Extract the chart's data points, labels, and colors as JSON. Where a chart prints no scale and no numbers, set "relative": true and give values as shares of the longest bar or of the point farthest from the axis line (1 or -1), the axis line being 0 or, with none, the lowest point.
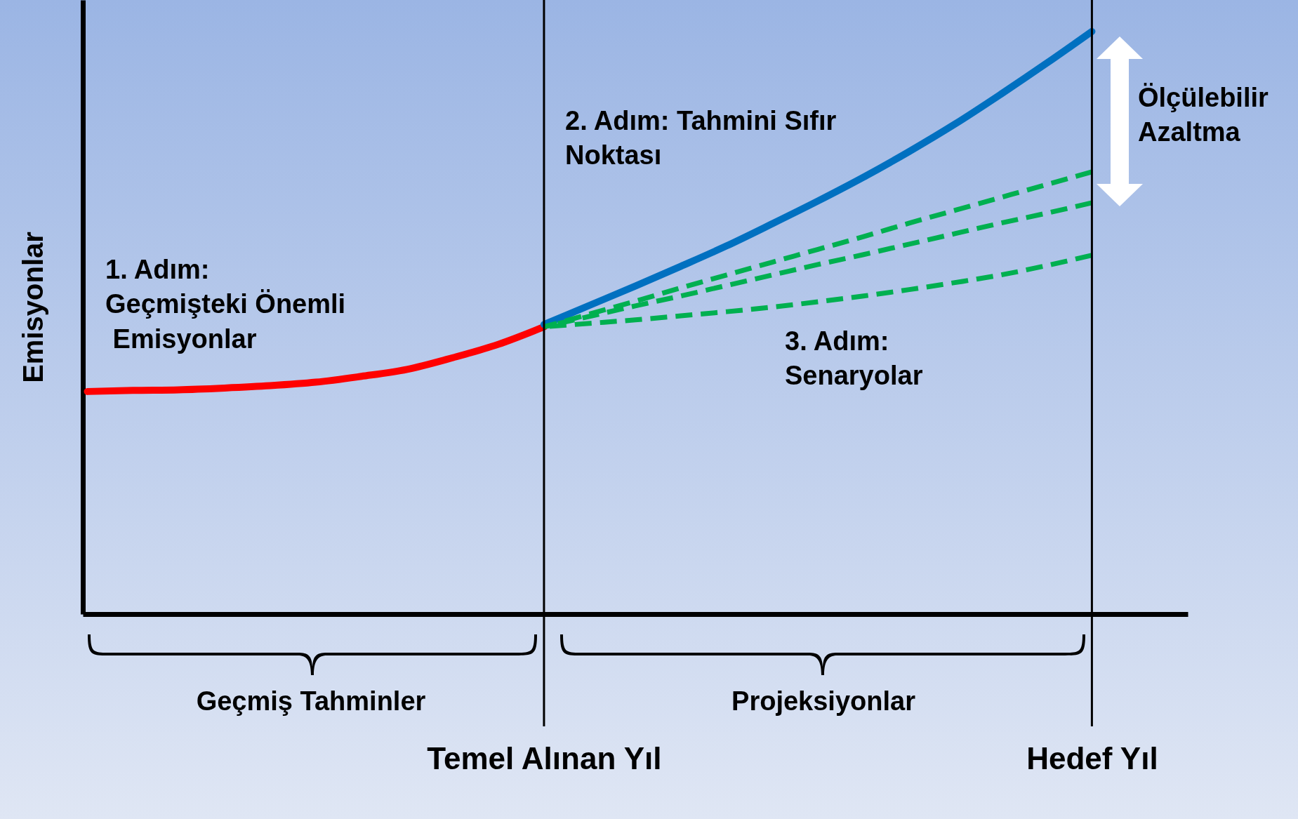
{
  "chart_data": {
    "type": "line",
    "ylabel": "Emisyonlar",
    "categories": [
      null,
      null,
      null,
      null,
      null,
      null,
      null,
      null,
      null,
      null,
      "Temel Alınan Yıl",
      null,
      null,
      null,
      null,
      null,
      null,
      null,
      null,
      null,
      null,
      null,
      "Hedef Yıl",
      null,
      null
    ],
    "series": [
      {
        "color": "#ff0000",
        "line_style": "solid",
        "values": [
          0.382,
          0.384,
          0.385,
          0.388,
          0.392,
          0.398,
          0.408,
          0.42,
          0.44,
          0.463,
          0.493,
          null,
          null,
          null,
          null,
          null,
          null,
          null,
          null,
          null,
          null,
          null,
          null,
          null,
          null
        ]
      },
      {
        "color": "#0070c0",
        "line_style": "solid",
        "values": [
          null,
          null,
          null,
          null,
          null,
          null,
          null,
          null,
          null,
          null,
          0.497,
          0.53,
          0.563,
          0.597,
          0.632,
          0.67,
          0.709,
          0.75,
          0.794,
          0.841,
          0.892,
          0.945,
          1,
          null,
          null
        ]
      },
      {
        "color": "#00b050",
        "line_style": "dashed",
        "values": [
          null,
          null,
          null,
          null,
          null,
          null,
          null,
          null,
          null,
          null,
          0.493,
          0.515,
          0.537,
          0.56,
          0.582,
          0.604,
          0.626,
          0.648,
          0.671,
          0.693,
          0.715,
          0.737,
          0.759,
          null,
          null
        ]
      },
      {
        "color": "#00b050",
        "line_style": "dashed",
        "values": [
          null,
          null,
          null,
          null,
          null,
          null,
          null,
          null,
          null,
          null,
          0.493,
          0.511,
          0.529,
          0.546,
          0.564,
          0.582,
          0.6,
          0.617,
          0.635,
          0.653,
          0.671,
          0.688,
          0.706,
          null,
          null
        ]
      },
      {
        "color": "#00b050",
        "line_style": "dashed",
        "values": [
          null,
          null,
          null,
          null,
          null,
          null,
          null,
          null,
          null,
          null,
          0.493,
          0.499,
          0.505,
          0.512,
          0.519,
          0.527,
          0.536,
          0.546,
          0.557,
          0.569,
          0.582,
          0.598,
          0.616,
          null,
          null
        ]
      }
    ],
    "ref_lines": [
      {
        "axis": "x",
        "value": "Temel Alınan Yıl"
      },
      {
        "axis": "x",
        "value": "Hedef Yıl"
      }
    ],
    "annotations": [
      "1. Adım:\nGeçmişteki Önemli\n Emisyonlar",
      "2. Adım: Tahmini Sıfır\nNoktası",
      "3. Adım:\nSenaryolar",
      "Ölçülebilir\nAzaltma",
      "Geçmiş Tahminler",
      "Projeksiyonlar"
    ],
    "relative": true
  }
}
